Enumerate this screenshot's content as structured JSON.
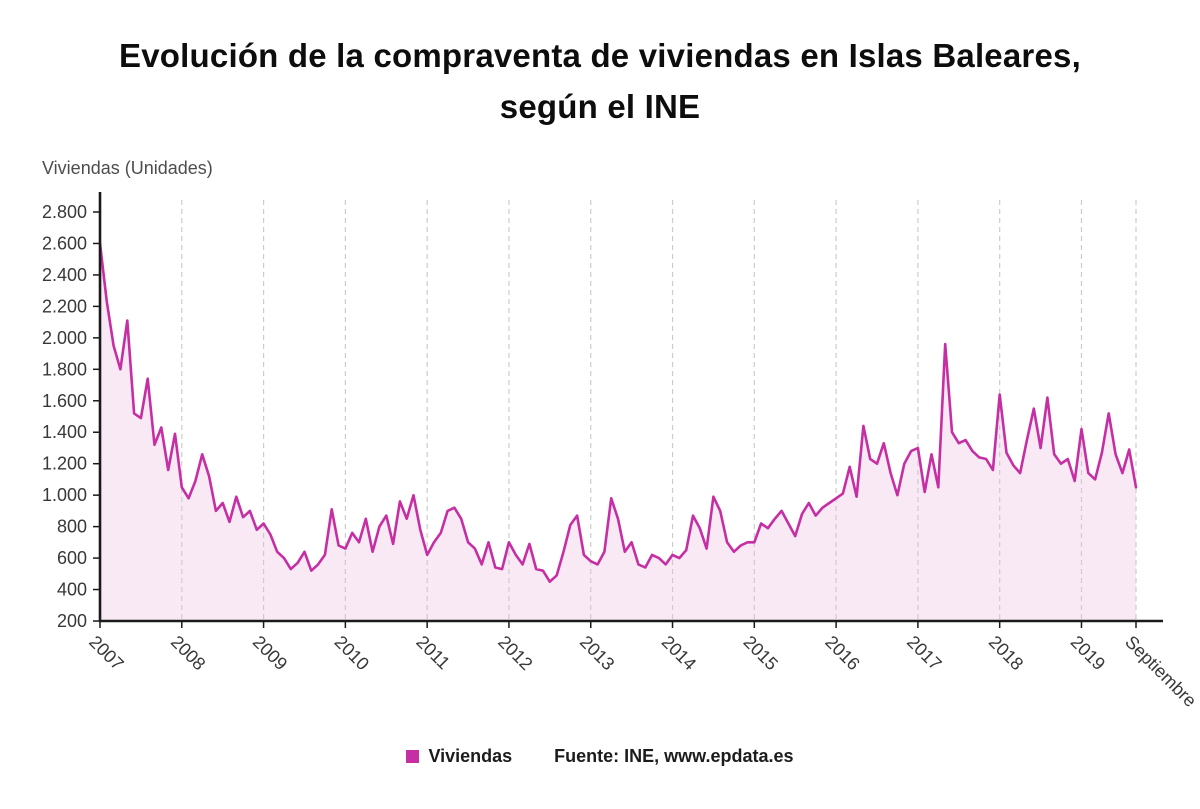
{
  "header": {
    "title_line1": "Evolución de la compraventa de viviendas en Islas Baleares,",
    "title_line2": "según el INE"
  },
  "chart_data": {
    "type": "area",
    "title": "Evolución de la compraventa de viviendas en Islas Baleares, según el INE",
    "ylabel": "Viviendas (Unidades)",
    "xlabel": "",
    "ylim": [
      200,
      2800
    ],
    "grid": {
      "vertical_dashed": true,
      "horizontal": false,
      "color": "#cccccc"
    },
    "axis_color": "#1a1a1a",
    "text_color": "#383838",
    "legend_position": "bottom",
    "source": "Fuente: INE, www.epdata.es",
    "x_tick_labels": [
      "2007",
      "2008",
      "2009",
      "2010",
      "2011",
      "2012",
      "2013",
      "2014",
      "2015",
      "2016",
      "2017",
      "2018",
      "2019",
      "Septiembre"
    ],
    "year_tick_month_indices": [
      0,
      12,
      24,
      36,
      48,
      60,
      72,
      84,
      96,
      108,
      120,
      132,
      144,
      152
    ],
    "y_ticks": [
      {
        "value": 200,
        "label": "200"
      },
      {
        "value": 400,
        "label": "400"
      },
      {
        "value": 600,
        "label": "600"
      },
      {
        "value": 800,
        "label": "800"
      },
      {
        "value": 1000,
        "label": "1.000"
      },
      {
        "value": 1200,
        "label": "1.200"
      },
      {
        "value": 1400,
        "label": "1.400"
      },
      {
        "value": 1600,
        "label": "1.600"
      },
      {
        "value": 1800,
        "label": "1.800"
      },
      {
        "value": 2000,
        "label": "2.000"
      },
      {
        "value": 2200,
        "label": "2.200"
      },
      {
        "value": 2400,
        "label": "2.400"
      },
      {
        "value": 2600,
        "label": "2.600"
      },
      {
        "value": 2800,
        "label": "2.800"
      }
    ],
    "series": [
      {
        "name": "Viviendas",
        "color": "#c62fa4",
        "fill": "#f9e9f4",
        "period": "monthly, Jan 2007 - Sep 2019",
        "values": [
          2600,
          2230,
          1950,
          1800,
          2110,
          1520,
          1490,
          1740,
          1320,
          1430,
          1160,
          1390,
          1050,
          980,
          1090,
          1260,
          1120,
          900,
          950,
          830,
          990,
          860,
          900,
          780,
          820,
          750,
          640,
          600,
          530,
          570,
          640,
          520,
          560,
          620,
          910,
          680,
          660,
          760,
          700,
          850,
          640,
          800,
          870,
          690,
          960,
          850,
          1000,
          780,
          620,
          700,
          760,
          900,
          920,
          850,
          700,
          660,
          560,
          700,
          540,
          530,
          700,
          620,
          560,
          690,
          530,
          520,
          450,
          490,
          640,
          810,
          870,
          620,
          580,
          560,
          640,
          980,
          850,
          640,
          700,
          560,
          540,
          620,
          600,
          560,
          620,
          600,
          650,
          870,
          790,
          660,
          990,
          900,
          700,
          640,
          680,
          700,
          700,
          820,
          790,
          850,
          900,
          820,
          740,
          880,
          950,
          870,
          920,
          950,
          980,
          1010,
          1180,
          990,
          1440,
          1230,
          1200,
          1330,
          1140,
          1000,
          1200,
          1280,
          1300,
          1020,
          1260,
          1050,
          1960,
          1400,
          1330,
          1350,
          1280,
          1240,
          1230,
          1160,
          1640,
          1270,
          1190,
          1140,
          1350,
          1550,
          1300,
          1620,
          1260,
          1200,
          1230,
          1090,
          1420,
          1140,
          1100,
          1270,
          1520,
          1260,
          1140,
          1290,
          1050
        ]
      }
    ]
  }
}
